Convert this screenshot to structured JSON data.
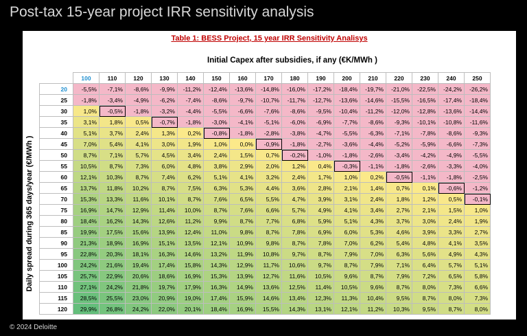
{
  "page": {
    "title": "Post-tax 15-year project IRR sensitivity analysis",
    "footer": "© 2024 Deloitte"
  },
  "table": {
    "title": "Table 1: BESS Project, 15 year IRR Sensitivity Analisys",
    "column_axis_label": "Initial Capex after subsidies, if any (€K/MWh )",
    "row_axis_label": "Daily spread during 365 days/year (€/MWh )",
    "columns": [
      "100",
      "110",
      "120",
      "130",
      "140",
      "150",
      "160",
      "170",
      "180",
      "190",
      "200",
      "210",
      "220",
      "230",
      "240",
      "250"
    ],
    "rows": [
      {
        "label": "20",
        "values": [
          "-5,5%",
          "-7,1%",
          "-8,6%",
          "-9,9%",
          "-11,2%",
          "-12,4%",
          "-13,6%",
          "-14,8%",
          "-16,0%",
          "-17,2%",
          "-18,4%",
          "-19,7%",
          "-21,0%",
          "-22,5%",
          "-24,2%",
          "-26,2%"
        ]
      },
      {
        "label": "25",
        "values": [
          "-1,8%",
          "-3,4%",
          "-4,9%",
          "-6,2%",
          "-7,4%",
          "-8,6%",
          "-9,7%",
          "-10,7%",
          "-11,7%",
          "-12,7%",
          "-13,6%",
          "-14,6%",
          "-15,5%",
          "-16,5%",
          "-17,4%",
          "-18,4%"
        ]
      },
      {
        "label": "30",
        "values": [
          "1,0%",
          "-0,5%",
          "-1,8%",
          "-3,2%",
          "-4,4%",
          "-5,5%",
          "-6,6%",
          "-7,6%",
          "-8,6%",
          "-9,5%",
          "-10,4%",
          "-11,2%",
          "-12,0%",
          "-12,8%",
          "-13,6%",
          "-14,4%"
        ]
      },
      {
        "label": "35",
        "values": [
          "3,1%",
          "1,8%",
          "0,5%",
          "-0,7%",
          "-1,8%",
          "-3,0%",
          "-4,1%",
          "-5,1%",
          "-6,0%",
          "-6,9%",
          "-7,7%",
          "-8,6%",
          "-9,3%",
          "-10,1%",
          "-10,8%",
          "-11,6%"
        ]
      },
      {
        "label": "40",
        "values": [
          "5,1%",
          "3,7%",
          "2,4%",
          "1,3%",
          "0,2%",
          "-0,8%",
          "-1,8%",
          "-2,8%",
          "-3,8%",
          "-4,7%",
          "-5,5%",
          "-6,3%",
          "-7,1%",
          "-7,8%",
          "-8,6%",
          "-9,3%"
        ]
      },
      {
        "label": "45",
        "values": [
          "7,0%",
          "5,4%",
          "4,1%",
          "3,0%",
          "1,9%",
          "1,0%",
          "0,0%",
          "-0,9%",
          "-1,8%",
          "-2,7%",
          "-3,6%",
          "-4,4%",
          "-5,2%",
          "-5,9%",
          "-6,6%",
          "-7,3%"
        ]
      },
      {
        "label": "50",
        "values": [
          "8,7%",
          "7,1%",
          "5,7%",
          "4,5%",
          "3,4%",
          "2,4%",
          "1,5%",
          "0,7%",
          "-0,2%",
          "-1,0%",
          "-1,8%",
          "-2,6%",
          "-3,4%",
          "-4,2%",
          "-4,9%",
          "-5,5%"
        ]
      },
      {
        "label": "55",
        "values": [
          "10,5%",
          "8,7%",
          "7,3%",
          "6,0%",
          "4,8%",
          "3,8%",
          "2,9%",
          "2,0%",
          "1,2%",
          "0,4%",
          "-0,3%",
          "-1,1%",
          "-1,8%",
          "-2,6%",
          "-3,3%",
          "-4,0%"
        ]
      },
      {
        "label": "60",
        "values": [
          "12,1%",
          "10,3%",
          "8,7%",
          "7,4%",
          "6,2%",
          "5,1%",
          "4,1%",
          "3,2%",
          "2,4%",
          "1,7%",
          "1,0%",
          "0,2%",
          "-0,5%",
          "-1,1%",
          "-1,8%",
          "-2,5%"
        ]
      },
      {
        "label": "65",
        "values": [
          "13,7%",
          "11,8%",
          "10,2%",
          "8,7%",
          "7,5%",
          "6,3%",
          "5,3%",
          "4,4%",
          "3,6%",
          "2,8%",
          "2,1%",
          "1,4%",
          "0,7%",
          "0,1%",
          "-0,6%",
          "-1,2%"
        ]
      },
      {
        "label": "70",
        "values": [
          "15,3%",
          "13,3%",
          "11,6%",
          "10,1%",
          "8,7%",
          "7,6%",
          "6,5%",
          "5,5%",
          "4,7%",
          "3,9%",
          "3,1%",
          "2,4%",
          "1,8%",
          "1,2%",
          "0,5%",
          "-0,1%"
        ]
      },
      {
        "label": "75",
        "values": [
          "16,9%",
          "14,7%",
          "12,9%",
          "11,4%",
          "10,0%",
          "8,7%",
          "7,6%",
          "6,6%",
          "5,7%",
          "4,9%",
          "4,1%",
          "3,4%",
          "2,7%",
          "2,1%",
          "1,5%",
          "1,0%"
        ]
      },
      {
        "label": "80",
        "values": [
          "18,4%",
          "16,2%",
          "14,3%",
          "12,6%",
          "11,2%",
          "9,9%",
          "8,7%",
          "7,7%",
          "6,8%",
          "5,9%",
          "5,1%",
          "4,3%",
          "3,7%",
          "3,0%",
          "2,4%",
          "1,9%"
        ]
      },
      {
        "label": "85",
        "values": [
          "19,9%",
          "17,5%",
          "15,6%",
          "13,9%",
          "12,4%",
          "11,0%",
          "9,8%",
          "8,7%",
          "7,8%",
          "6,9%",
          "6,0%",
          "5,3%",
          "4,6%",
          "3,9%",
          "3,3%",
          "2,7%"
        ]
      },
      {
        "label": "90",
        "values": [
          "21,3%",
          "18,9%",
          "16,9%",
          "15,1%",
          "13,5%",
          "12,1%",
          "10,9%",
          "9,8%",
          "8,7%",
          "7,8%",
          "7,0%",
          "6,2%",
          "5,4%",
          "4,8%",
          "4,1%",
          "3,5%"
        ]
      },
      {
        "label": "95",
        "values": [
          "22,8%",
          "20,3%",
          "18,1%",
          "16,3%",
          "14,6%",
          "13,2%",
          "11,9%",
          "10,8%",
          "9,7%",
          "8,7%",
          "7,9%",
          "7,0%",
          "6,3%",
          "5,6%",
          "4,9%",
          "4,3%"
        ]
      },
      {
        "label": "100",
        "values": [
          "24,2%",
          "21,6%",
          "19,4%",
          "17,4%",
          "15,8%",
          "14,3%",
          "12,9%",
          "11,7%",
          "10,6%",
          "9,7%",
          "8,7%",
          "7,9%",
          "7,1%",
          "6,4%",
          "5,7%",
          "5,1%"
        ]
      },
      {
        "label": "105",
        "values": [
          "25,7%",
          "22,9%",
          "20,6%",
          "18,6%",
          "16,9%",
          "15,3%",
          "13,9%",
          "12,7%",
          "11,6%",
          "10,5%",
          "9,6%",
          "8,7%",
          "7,9%",
          "7,2%",
          "6,5%",
          "5,8%"
        ]
      },
      {
        "label": "110",
        "values": [
          "27,1%",
          "24,2%",
          "21,8%",
          "19,7%",
          "17,9%",
          "16,3%",
          "14,9%",
          "13,6%",
          "12,5%",
          "11,4%",
          "10,5%",
          "9,6%",
          "8,7%",
          "8,0%",
          "7,3%",
          "6,6%"
        ]
      },
      {
        "label": "115",
        "values": [
          "28,5%",
          "25,5%",
          "23,0%",
          "20,9%",
          "19,0%",
          "17,4%",
          "15,9%",
          "14,6%",
          "13,4%",
          "12,3%",
          "11,3%",
          "10,4%",
          "9,5%",
          "8,7%",
          "8,0%",
          "7,3%"
        ]
      },
      {
        "label": "120",
        "values": [
          "29,9%",
          "26,8%",
          "24,2%",
          "22,0%",
          "20,1%",
          "18,4%",
          "16,9%",
          "15,5%",
          "14,3%",
          "13,1%",
          "12,1%",
          "11,2%",
          "10,3%",
          "9,5%",
          "8,7%",
          "8,0%"
        ]
      }
    ],
    "colors": {
      "negative": "#f4b8c8",
      "low": "#fce98a",
      "high": "#63be7b",
      "accent_header": "#1f8fd0"
    },
    "highlighted_cells_note": "threshold cells are outlined"
  }
}
